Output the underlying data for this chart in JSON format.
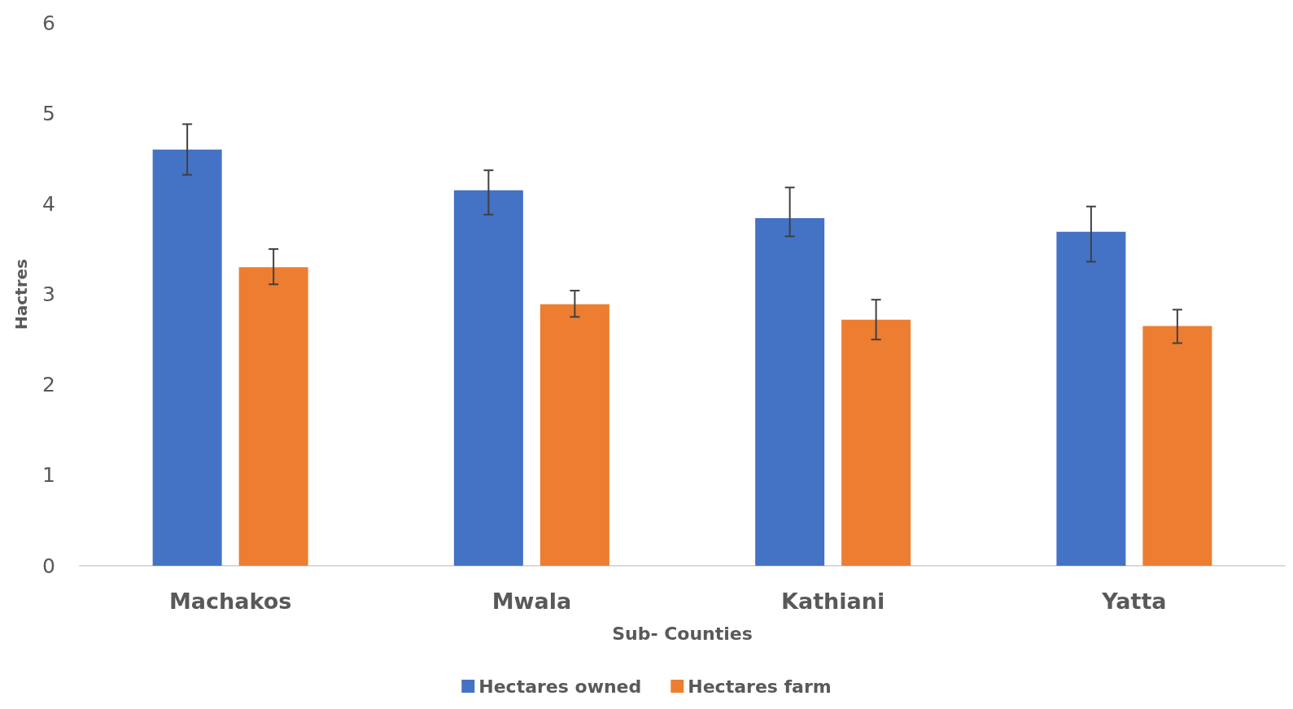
{
  "chart_data": {
    "type": "bar",
    "xlabel": "Sub- Counties",
    "ylabel": "Hactres",
    "categories": [
      "Machakos",
      "Mwala",
      "Kathiani",
      "Yatta"
    ],
    "series": [
      {
        "name": "Hectares owned",
        "color": "#4472c4",
        "values": [
          4.6,
          4.15,
          3.84,
          3.69
        ],
        "errors": [
          [
            4.32,
            4.88
          ],
          [
            3.88,
            4.37
          ],
          [
            3.64,
            4.18
          ],
          [
            3.36,
            3.97
          ]
        ]
      },
      {
        "name": "Hectares farm",
        "color": "#ed7d31",
        "values": [
          3.3,
          2.89,
          2.72,
          2.65
        ],
        "errors": [
          [
            3.11,
            3.5
          ],
          [
            2.75,
            3.04
          ],
          [
            2.5,
            2.94
          ],
          [
            2.46,
            2.83
          ]
        ]
      }
    ],
    "ylim": [
      0,
      6
    ],
    "yticks": [
      0,
      1,
      2,
      3,
      4,
      5,
      6
    ],
    "grid": false,
    "legend": "bottom"
  }
}
